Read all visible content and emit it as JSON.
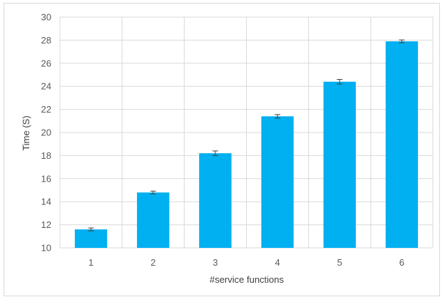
{
  "chart_data": {
    "type": "bar",
    "title": "",
    "xlabel": "#service functions",
    "ylabel": "Time (S)",
    "categories": [
      "1",
      "2",
      "3",
      "4",
      "5",
      "6"
    ],
    "values": [
      11.6,
      14.8,
      18.2,
      21.4,
      24.4,
      27.9
    ],
    "error": [
      0.12,
      0.12,
      0.2,
      0.15,
      0.2,
      0.12
    ],
    "ylim": [
      10,
      30
    ],
    "yticks": [
      10,
      12,
      14,
      16,
      18,
      20,
      22,
      24,
      26,
      28,
      30
    ],
    "grid": true,
    "bar_color": "#00b0f0",
    "error_bar_color": "#404040",
    "grid_color": "#d9d9d9"
  }
}
